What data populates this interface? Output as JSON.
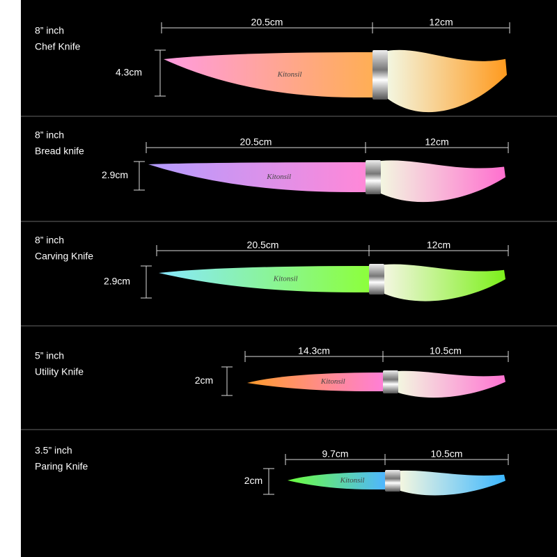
{
  "brand": "Kitonsil",
  "knives": [
    {
      "size": "8” inch",
      "name": "Chef Knife",
      "blade_length": "20.5cm",
      "handle_length": "12cm",
      "blade_height": "4.3cm"
    },
    {
      "size": "8” inch",
      "name": "Bread knife",
      "blade_length": "20.5cm",
      "handle_length": "12cm",
      "blade_height": "2.9cm"
    },
    {
      "size": "8” inch",
      "name": "Carving Knife",
      "blade_length": "20.5cm",
      "handle_length": "12cm",
      "blade_height": "2.9cm"
    },
    {
      "size": "5” inch",
      "name": "Utility Knife",
      "blade_length": "14.3cm",
      "handle_length": "10.5cm",
      "blade_height": "2cm"
    },
    {
      "size": "3.5” inch",
      "name": "Paring Knife",
      "blade_length": "9.7cm",
      "handle_length": "10.5cm",
      "blade_height": "2cm"
    }
  ]
}
